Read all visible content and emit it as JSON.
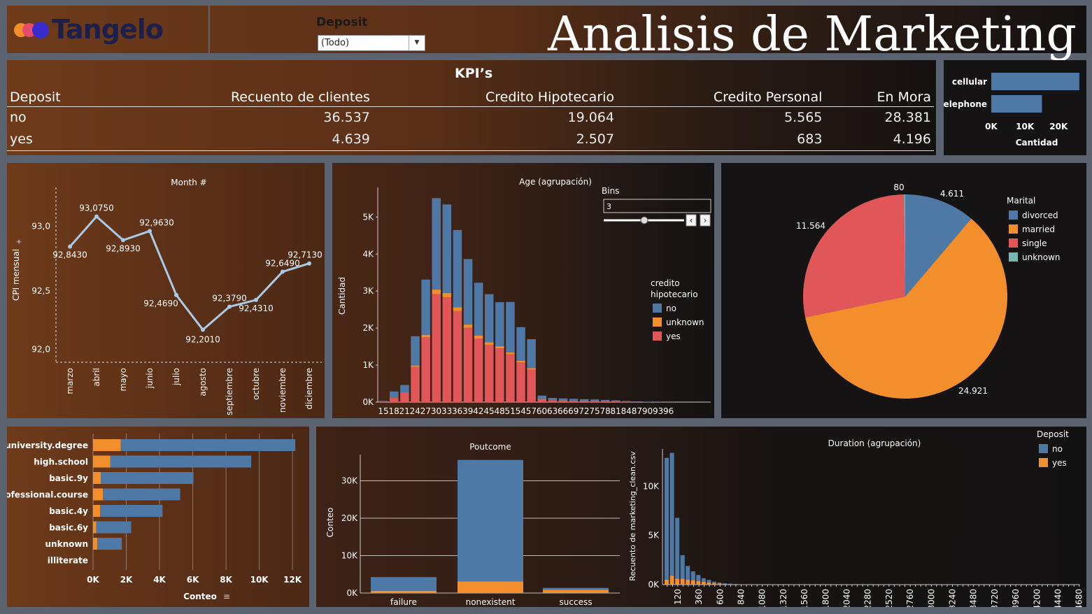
{
  "header": {
    "logo_text": "Tangelo",
    "title": "Analisis de Marketing",
    "filter_label": "Deposit",
    "filter_value": "(Todo)"
  },
  "kpi": {
    "title": "KPI’s",
    "columns": [
      "Deposit",
      "Recuento de clientes",
      "Credito Hipotecario",
      "Credito Personal",
      "En Mora"
    ],
    "rows": [
      {
        "label": "no",
        "values": [
          "36.537",
          "19.064",
          "5.565",
          "28.381"
        ]
      },
      {
        "label": "yes",
        "values": [
          "4.639",
          "2.507",
          "683",
          "4.196"
        ]
      }
    ]
  },
  "colors": {
    "blue": "#4e79a7",
    "orange": "#f28e2b",
    "red": "#e15759",
    "teal": "#76b7b2",
    "line": "#a9cbe8"
  },
  "chart_data": [
    {
      "id": "contact",
      "type": "bar",
      "orientation": "horizontal",
      "categories": [
        "cellular",
        "telephone"
      ],
      "values": [
        26144,
        15044
      ],
      "xlabel": "Cantidad",
      "xticks": [
        "0K",
        "10K",
        "20K"
      ],
      "xlim": [
        0,
        27000
      ]
    },
    {
      "id": "cpi",
      "type": "line",
      "title": "Month #",
      "ylabel": "CPI mensual",
      "categories": [
        "marzo",
        "abril",
        "mayo",
        "junio",
        "julio",
        "agosto",
        "septiembre",
        "octubre",
        "noviembre",
        "diciembre"
      ],
      "values": [
        92.843,
        93.075,
        92.893,
        92.963,
        92.469,
        92.201,
        92.379,
        92.431,
        92.649,
        92.713
      ],
      "labels": [
        "92,8430",
        "93,0750",
        "92,8930",
        "92,9630",
        "92,4690",
        "92,2010",
        "92,3790",
        "92,4310",
        "92,6490",
        "92,7130"
      ],
      "yticks": [
        "93,0",
        "92,5",
        "92,0"
      ],
      "ylim": [
        91.95,
        93.3
      ]
    },
    {
      "id": "age",
      "type": "bar",
      "stacked": true,
      "title": "Age (agrupación)",
      "ylabel": "Cantidad",
      "categories": [
        "15",
        "18",
        "21",
        "24",
        "27",
        "30",
        "33",
        "36",
        "39",
        "42",
        "45",
        "48",
        "51",
        "54",
        "57",
        "60",
        "63",
        "66",
        "69",
        "72",
        "75",
        "78",
        "81",
        "84",
        "87",
        "90",
        "93",
        "96"
      ],
      "series": [
        {
          "name": "yes",
          "values": [
            10,
            120,
            250,
            950,
            1750,
            2920,
            2830,
            2460,
            2010,
            1720,
            1550,
            1450,
            1290,
            1070,
            880,
            80,
            50,
            45,
            40,
            35,
            30,
            25,
            20,
            12,
            8,
            4,
            2,
            1
          ]
        },
        {
          "name": "unknown",
          "values": [
            1,
            6,
            12,
            40,
            70,
            120,
            120,
            100,
            85,
            75,
            65,
            60,
            55,
            45,
            40,
            5,
            3,
            3,
            2,
            2,
            2,
            1,
            1,
            1,
            0,
            0,
            0,
            0
          ]
        },
        {
          "name": "no",
          "values": [
            20,
            160,
            200,
            790,
            1490,
            2470,
            2390,
            2090,
            1770,
            1430,
            1300,
            1190,
            1360,
            910,
            780,
            90,
            60,
            52,
            48,
            43,
            40,
            34,
            27,
            17,
            10,
            6,
            3,
            2
          ]
        }
      ],
      "yticks": [
        "0K",
        "1K",
        "2K",
        "3K",
        "4K",
        "5K"
      ],
      "ylim": [
        0,
        5800
      ],
      "legend_title": "credito hipotecario",
      "legend": [
        "no",
        "unknown",
        "yes"
      ],
      "bins_label": "Bins",
      "bins_value": "3"
    },
    {
      "id": "marital",
      "type": "pie",
      "legend_title": "Marital",
      "categories": [
        "divorced",
        "married",
        "single",
        "unknown"
      ],
      "values": [
        4611,
        24921,
        11564,
        80
      ],
      "labels": [
        "4.611",
        "24.921",
        "11.564",
        "80"
      ]
    },
    {
      "id": "education",
      "type": "bar",
      "orientation": "horizontal",
      "stacked": true,
      "categories": [
        "university.degree",
        "high.school",
        "basic.9y",
        "professional.course",
        "basic.4y",
        "basic.6y",
        "unknown",
        "illiterate"
      ],
      "series": [
        {
          "name": "yes",
          "values": [
            1670,
            1031,
            473,
            595,
            428,
            188,
            251,
            4
          ]
        },
        {
          "name": "no",
          "values": [
            10498,
            8484,
            5572,
            4648,
            3748,
            2104,
            1480,
            14
          ]
        }
      ],
      "xlabel": "Conteo",
      "xticks": [
        "0K",
        "2K",
        "4K",
        "6K",
        "8K",
        "10K",
        "12K"
      ],
      "xlim": [
        0,
        12500
      ]
    },
    {
      "id": "poutcome",
      "type": "bar",
      "stacked": true,
      "title": "Poutcome",
      "ylabel": "Conteo",
      "categories": [
        "failure",
        "nonexistent",
        "success"
      ],
      "series": [
        {
          "name": "yes",
          "values": [
            605,
            3141,
            894
          ]
        },
        {
          "name": "no",
          "values": [
            3647,
            32422,
            479
          ]
        }
      ],
      "yticks": [
        "0K",
        "10K",
        "20K",
        "30K"
      ],
      "ylim": [
        0,
        37000
      ]
    },
    {
      "id": "duration",
      "type": "bar",
      "stacked": true,
      "title": "Duration (agrupación)",
      "ylabel": "Recuento de marketing_clean.csv",
      "legend_title": "Deposit",
      "legend": [
        "no",
        "yes"
      ],
      "categories": [
        "0",
        "60",
        "120",
        "180",
        "240",
        "300",
        "360",
        "420",
        "480",
        "540",
        "600",
        "660",
        "720",
        "780",
        "840",
        "900",
        "960",
        "1020",
        "1080",
        "1140",
        "1200",
        "1260",
        "1320",
        "1380",
        "1440",
        "1500",
        "1560",
        "1620",
        "1680",
        "1740",
        "1800",
        "1860",
        "1920",
        "1980",
        "2040",
        "2100",
        "2160",
        "2220",
        "2280",
        "2340",
        "2400",
        "2460",
        "2520",
        "2580",
        "2640",
        "2700",
        "2760",
        "2820",
        "2880",
        "2940",
        "3000",
        "3060",
        "3120",
        "3180",
        "3240",
        "3300",
        "3360",
        "3420",
        "3480",
        "3540",
        "3600",
        "3660",
        "3720",
        "3780",
        "3840",
        "3900",
        "3960",
        "4020",
        "4080",
        "4140",
        "4200",
        "4260",
        "4320",
        "4380",
        "4440",
        "4500",
        "4560",
        "4620",
        "4680"
      ],
      "tick_labels": [
        "120",
        "360",
        "600",
        "840",
        "1080",
        "1320",
        "1560",
        "1800",
        "2040",
        "2280",
        "2520",
        "2760",
        "3000",
        "3240",
        "3480",
        "3720",
        "3960",
        "4200",
        "4440",
        "4680"
      ],
      "series": [
        {
          "name": "no",
          "values": [
            12400,
            12500,
            6200,
            2400,
            1400,
            900,
            600,
            350,
            250,
            150,
            90,
            60,
            40,
            25,
            15,
            10,
            8,
            6,
            5,
            4,
            3,
            3,
            2,
            2,
            2,
            1,
            1,
            1,
            1,
            1,
            1,
            1,
            1,
            1,
            1,
            1,
            1,
            1,
            1,
            1,
            1,
            1,
            1,
            1,
            1,
            1,
            1,
            1,
            1,
            1,
            1,
            1,
            1,
            1,
            1,
            1,
            1,
            1,
            1,
            1,
            1,
            1,
            1,
            1,
            1,
            1,
            1,
            1,
            1,
            1,
            1,
            1,
            1,
            1,
            1,
            1,
            1,
            1,
            1
          ]
        },
        {
          "name": "yes",
          "values": [
            500,
            900,
            600,
            600,
            500,
            450,
            380,
            300,
            230,
            160,
            120,
            80,
            60,
            40,
            25,
            15,
            10,
            8,
            6,
            4,
            3,
            2,
            2,
            1,
            1,
            1,
            1,
            1,
            0,
            0,
            0,
            0,
            0,
            0,
            0,
            0,
            0,
            0,
            0,
            0,
            0,
            0,
            0,
            0,
            0,
            0,
            0,
            0,
            0,
            0,
            0,
            0,
            0,
            0,
            0,
            0,
            0,
            0,
            0,
            0,
            0,
            0,
            0,
            0,
            0,
            0,
            0,
            0,
            0,
            0,
            0,
            0,
            0,
            0,
            0,
            0,
            0,
            0,
            0
          ]
        }
      ],
      "yticks": [
        "0K",
        "5K",
        "10K"
      ],
      "ylim": [
        0,
        13800
      ]
    }
  ]
}
